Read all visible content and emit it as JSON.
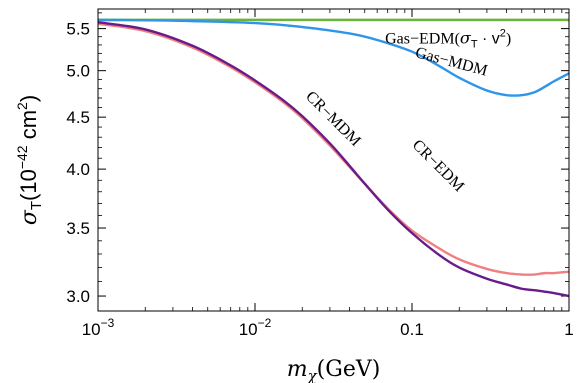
{
  "chart_data": {
    "type": "line",
    "xscale": "log",
    "yscale": "log",
    "xlim": [
      0.001,
      1
    ],
    "ylim": [
      2.9,
      5.75
    ],
    "xlabel": {
      "symbol": "m",
      "sub": "χ",
      "unit": "(GeV)"
    },
    "ylabel": {
      "symbol": "σ",
      "sub": "T",
      "unit_open": "(10",
      "exp": "−42",
      "unit_mid": " cm",
      "exp2": "2",
      "unit_close": ")"
    },
    "xticks": [
      {
        "value": 0.001,
        "mantissa": "10",
        "exp": "−3"
      },
      {
        "value": 0.01,
        "mantissa": "10",
        "exp": "−2"
      },
      {
        "value": 0.1,
        "label": "0.1"
      },
      {
        "value": 1,
        "label": "1"
      }
    ],
    "xminor": [
      0.002,
      0.003,
      0.004,
      0.005,
      0.006,
      0.007,
      0.008,
      0.009,
      0.02,
      0.03,
      0.04,
      0.05,
      0.06,
      0.07,
      0.08,
      0.09,
      0.2,
      0.3,
      0.4,
      0.5,
      0.6,
      0.7,
      0.8,
      0.9
    ],
    "yticks": [
      {
        "value": 3.0,
        "label": "3.0"
      },
      {
        "value": 3.5,
        "label": "3.5"
      },
      {
        "value": 4.0,
        "label": "4.0"
      },
      {
        "value": 4.5,
        "label": "4.5"
      },
      {
        "value": 5.0,
        "label": "5.0"
      },
      {
        "value": 5.5,
        "label": "5.5"
      }
    ],
    "yminor": [
      3.1,
      3.2,
      3.3,
      3.4,
      3.6,
      3.7,
      3.8,
      3.9,
      4.1,
      4.2,
      4.3,
      4.4,
      4.6,
      4.7,
      4.8,
      4.9,
      5.1,
      5.2,
      5.3,
      5.4,
      5.6,
      5.7
    ],
    "series": [
      {
        "color": "#6bb33a",
        "x": [
          0.001,
          0.01,
          0.1,
          1
        ],
        "y": [
          5.61,
          5.61,
          5.61,
          5.61
        ]
      },
      {
        "color": "#2f95e8",
        "x": [
          0.001,
          0.003,
          0.01,
          0.02,
          0.04,
          0.06,
          0.1,
          0.15,
          0.2,
          0.3,
          0.4,
          0.5,
          0.6,
          0.7,
          0.8,
          1.0
        ],
        "y": [
          5.61,
          5.6,
          5.57,
          5.52,
          5.44,
          5.36,
          5.22,
          5.05,
          4.92,
          4.78,
          4.73,
          4.73,
          4.76,
          4.82,
          4.88,
          4.97
        ]
      },
      {
        "color": "#f08080",
        "x": [
          0.001,
          0.002,
          0.004,
          0.007,
          0.01,
          0.015,
          0.02,
          0.03,
          0.04,
          0.05,
          0.07,
          0.1,
          0.15,
          0.2,
          0.3,
          0.4,
          0.5,
          0.6,
          0.7,
          0.8,
          1.0
        ],
        "y": [
          5.56,
          5.47,
          5.27,
          5.04,
          4.87,
          4.66,
          4.49,
          4.22,
          4.02,
          3.87,
          3.66,
          3.48,
          3.34,
          3.26,
          3.19,
          3.16,
          3.15,
          3.15,
          3.16,
          3.16,
          3.17
        ]
      },
      {
        "color": "#6a1b8a",
        "x": [
          0.001,
          0.002,
          0.004,
          0.007,
          0.01,
          0.015,
          0.02,
          0.03,
          0.04,
          0.05,
          0.07,
          0.1,
          0.15,
          0.2,
          0.3,
          0.4,
          0.5,
          0.6,
          0.7,
          0.8,
          1.0
        ],
        "y": [
          5.58,
          5.49,
          5.29,
          5.06,
          4.89,
          4.68,
          4.51,
          4.24,
          4.03,
          3.87,
          3.65,
          3.46,
          3.29,
          3.2,
          3.12,
          3.08,
          3.05,
          3.04,
          3.03,
          3.02,
          3.0
        ]
      }
    ],
    "annotations": [
      {
        "text": "Gas−EDM(",
        "sigma": "σ",
        "sub": "T",
        "rest": " · v",
        "sup": "2",
        "close": ")",
        "x": 0.17,
        "y": 5.32,
        "angle": 0
      },
      {
        "text": "Gas−MDM",
        "x": 0.175,
        "y": 5.05,
        "angle": 15
      },
      {
        "text": "CR−MDM",
        "x": 0.03,
        "y": 4.45,
        "angle": 45
      },
      {
        "text": "CR−EDM",
        "x": 0.14,
        "y": 4.0,
        "angle": 45
      }
    ]
  }
}
